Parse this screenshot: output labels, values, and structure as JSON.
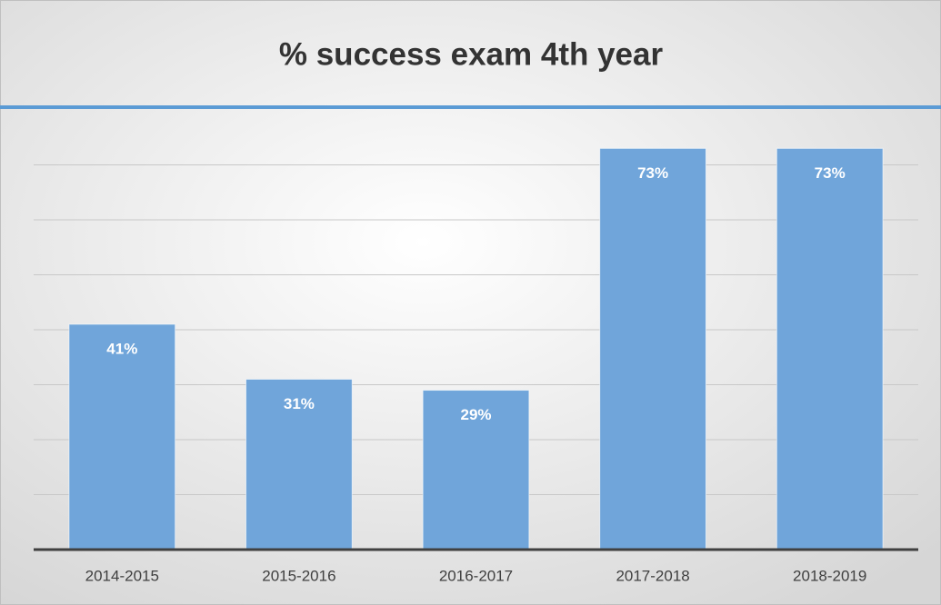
{
  "chart_data": {
    "type": "bar",
    "title": "% success exam 4th year",
    "categories": [
      "2014-2015",
      "2015-2016",
      "2016-2017",
      "2017-2018",
      "2018-2019"
    ],
    "values": [
      41,
      31,
      29,
      73,
      73
    ],
    "value_labels": [
      "41%",
      "31%",
      "29%",
      "73%",
      "73%"
    ],
    "color": "#70a5da",
    "ylim": [
      0,
      80
    ],
    "yticks": [
      0,
      10,
      20,
      30,
      40,
      50,
      60,
      70
    ],
    "grid": true
  }
}
